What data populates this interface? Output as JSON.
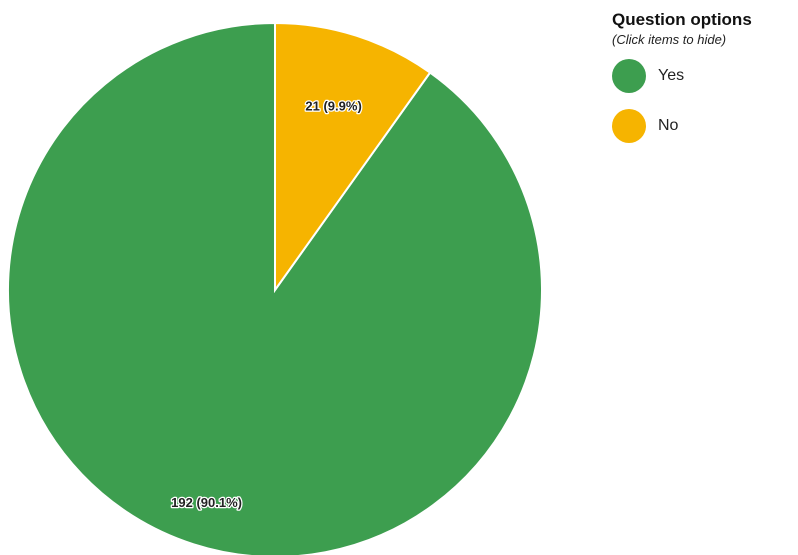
{
  "chart_data": {
    "type": "pie",
    "slices": [
      {
        "label": "Yes",
        "value": 192,
        "percent": "90.1%",
        "color": "#3d9e4f"
      },
      {
        "label": "No",
        "value": 21,
        "percent": "9.9%",
        "color": "#f6b400"
      }
    ],
    "data_labels": [
      "192 (90.1%)",
      "21 (9.9%)"
    ],
    "legend_placement": "top-right"
  },
  "legend": {
    "title": "Question options",
    "hint": "(Click items to hide)",
    "items": [
      {
        "label": "Yes",
        "color": "#3d9e4f"
      },
      {
        "label": "No",
        "color": "#f6b400"
      }
    ]
  }
}
